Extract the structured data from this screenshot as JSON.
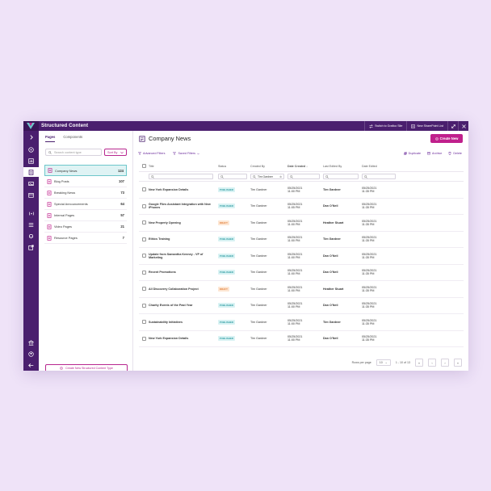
{
  "app": {
    "title": "Structured Content"
  },
  "topbar": {
    "switch_label": "Switch to Grafico Site",
    "new_list_label": "New SharePoint List",
    "expand_icon": "expand-icon",
    "close_icon": "close-icon"
  },
  "panel": {
    "tabs": [
      {
        "label": "Pages"
      },
      {
        "label": "Components"
      }
    ],
    "search_placeholder": "Search content type",
    "sort_label": "Sort By",
    "items": [
      {
        "label": "Company News",
        "count": "124",
        "icon": "page-icon"
      },
      {
        "label": "Blog Posts",
        "count": "107",
        "icon": "page-icon"
      },
      {
        "label": "Breaking News",
        "count": "73",
        "icon": "page-icon"
      },
      {
        "label": "Special Announcements",
        "count": "64",
        "icon": "page-icon"
      },
      {
        "label": "Internal Pages",
        "count": "57",
        "icon": "page-icon"
      },
      {
        "label": "Video Pages",
        "count": "21",
        "icon": "page-icon"
      },
      {
        "label": "Resource Pages",
        "count": "7",
        "icon": "page-icon"
      }
    ],
    "create_label": "Create New Structured Content Type"
  },
  "main": {
    "title": "Company News",
    "create_label": "Create New",
    "filters": {
      "advanced": "Advanced Filters",
      "saved": "Saved Filters"
    },
    "actions": {
      "duplicate": "Duplicate",
      "archive": "Archive",
      "delete": "Delete"
    },
    "columns": {
      "title": "Title",
      "status": "Status",
      "created_by": "Created By",
      "date_created": "Date Created",
      "last_edited": "Last Edited By",
      "date_edited": "Date Edited"
    },
    "filter_created_by": "Tim Gardner",
    "rows": [
      {
        "title": "New York Expansion Details",
        "status": "PUBLISHED",
        "created_by": "Tim Gardner",
        "date_created": "05/25/2021",
        "time_created": "11:00 PM",
        "last_edited": "Tim Gardner",
        "date_edited": "05/25/2021",
        "time_edited": "11:35 PM"
      },
      {
        "title": "Google Flies Assistant Integration with New iPhones",
        "status": "PUBLISHED",
        "created_by": "Tim Gardner",
        "date_created": "05/25/2021",
        "time_created": "11:05 PM",
        "last_edited": "Dan O'Neil",
        "date_edited": "05/25/2021",
        "time_edited": "11:35 PM"
      },
      {
        "title": "New Property Opening",
        "status": "DRAFT",
        "created_by": "Tim Gardner",
        "date_created": "05/25/2021",
        "time_created": "11:00 PM",
        "last_edited": "Heather Stuart",
        "date_edited": "05/25/2021",
        "time_edited": "11:35 PM"
      },
      {
        "title": "Ethics Training",
        "status": "PUBLISHED",
        "created_by": "Tim Gardner",
        "date_created": "05/25/2021",
        "time_created": "11:00 PM",
        "last_edited": "Tim Gardner",
        "date_edited": "05/25/2021",
        "time_edited": "11:35 PM"
      },
      {
        "title": "Update from Samantha Kenney - VP of Marketing",
        "status": "PUBLISHED",
        "created_by": "Tim Gardner",
        "date_created": "05/25/2021",
        "time_created": "11:00 PM",
        "last_edited": "Dan O'Neil",
        "date_edited": "05/25/2021",
        "time_edited": "11:35 PM"
      },
      {
        "title": "Recent Promotions",
        "status": "PUBLISHED",
        "created_by": "Tim Gardner",
        "date_created": "05/25/2021",
        "time_created": "11:00 PM",
        "last_edited": "Dan O'Neil",
        "date_edited": "05/25/2021",
        "time_edited": "11:35 PM"
      },
      {
        "title": "All Discovery Collaboration Project",
        "status": "DRAFT",
        "created_by": "Tim Gardner",
        "date_created": "05/25/2021",
        "time_created": "11:00 PM",
        "last_edited": "Heather Stuart",
        "date_edited": "05/25/2021",
        "time_edited": "11:35 PM"
      },
      {
        "title": "Charity Events of the Past Year",
        "status": "PUBLISHED",
        "created_by": "Tim Gardner",
        "date_created": "05/25/2021",
        "time_created": "11:00 PM",
        "last_edited": "Dan O'Neil",
        "date_edited": "05/25/2021",
        "time_edited": "11:35 PM"
      },
      {
        "title": "Sustainability Initiatives",
        "status": "PUBLISHED",
        "created_by": "Tim Gardner",
        "date_created": "05/25/2021",
        "time_created": "11:00 PM",
        "last_edited": "Tim Gardner",
        "date_edited": "05/25/2021",
        "time_edited": "11:35 PM"
      },
      {
        "title": "New York Expansion Details",
        "status": "PUBLISHED",
        "created_by": "Tim Gardner",
        "date_created": "05/25/2021",
        "time_created": "11:00 PM",
        "last_edited": "Dan O'Neil",
        "date_edited": "05/25/2021",
        "time_edited": "11:35 PM"
      }
    ],
    "pager": {
      "rows_label": "Rows per page",
      "rows_value": "10",
      "range": "1 - 10 of 13"
    }
  },
  "colors": {
    "brand": "#4a1f6e",
    "accent": "#c0208c",
    "published": "#2a9aa0",
    "draft": "#e07a30"
  }
}
